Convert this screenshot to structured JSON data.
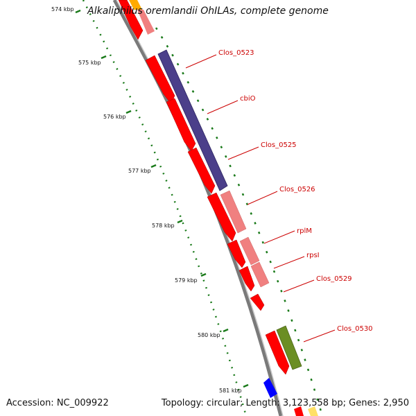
{
  "title": "Alkaliphilus oremlandii OhILAs, complete genome",
  "footer": {
    "accession": "Accession: NC_009922",
    "topology": "Topology: circular; Length: 3,123,558 bp; Genes: 2,950"
  },
  "kbp_ticks": [
    {
      "label": "574 kbp",
      "value": 574
    },
    {
      "label": "575 kbp",
      "value": 575
    },
    {
      "label": "576 kbp",
      "value": 576
    },
    {
      "label": "577 kbp",
      "value": 577
    },
    {
      "label": "578 kbp",
      "value": 578
    },
    {
      "label": "579 kbp",
      "value": 579
    },
    {
      "label": "580 kbp",
      "value": 580
    },
    {
      "label": "581 kbp",
      "value": 581
    }
  ],
  "gene_labels": [
    {
      "name": "Clos_0523"
    },
    {
      "name": "cbiO"
    },
    {
      "name": "Clos_0525"
    },
    {
      "name": "Clos_0526"
    },
    {
      "name": "rplM"
    },
    {
      "name": "rpsI"
    },
    {
      "name": "Clos_0529"
    },
    {
      "name": "Clos_0530"
    }
  ],
  "colors": {
    "cds_forward": "#ff0000",
    "cds_reverse": "#f08080",
    "purple_feature": "#4b3f8a",
    "green_feature": "#6b8e23",
    "blue_feature": "#0000ff",
    "orange_feature": "#ff8c00",
    "tick_green": "#1a7a1a",
    "label_red": "#cc0000",
    "backbone": "#808080"
  }
}
